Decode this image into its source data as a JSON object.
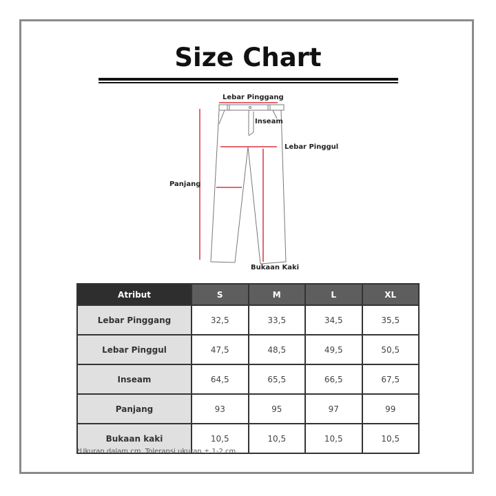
{
  "title": "Size Chart",
  "diagram_labels": {
    "waist": "Lebar Pinggang",
    "inseam": "Inseam",
    "hip": "Lebar Pinggul",
    "length": "Panjang",
    "leg_opening": "Bukaan Kaki"
  },
  "accent_color": "#e0303f",
  "table": {
    "headers": [
      "Atribut",
      "S",
      "M",
      "L",
      "XL"
    ],
    "rows": [
      {
        "label": "Lebar Pinggang",
        "values": [
          "32,5",
          "33,5",
          "34,5",
          "35,5"
        ]
      },
      {
        "label": "Lebar Pinggul",
        "values": [
          "47,5",
          "48,5",
          "49,5",
          "50,5"
        ]
      },
      {
        "label": "Inseam",
        "values": [
          "64,5",
          "65,5",
          "66,5",
          "67,5"
        ]
      },
      {
        "label": "Panjang",
        "values": [
          "93",
          "95",
          "97",
          "99"
        ]
      },
      {
        "label": "Bukaan kaki",
        "values": [
          "10,5",
          "10,5",
          "10,5",
          "10,5"
        ]
      }
    ]
  },
  "note": "*Ukuran dalam cm. Toleransi ukuran ± 1-2 cm"
}
